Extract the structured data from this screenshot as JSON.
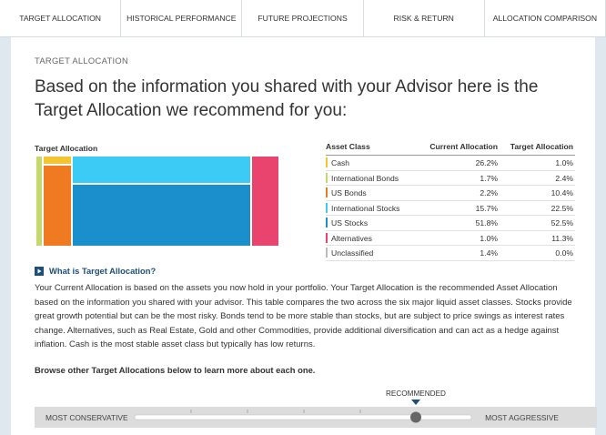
{
  "tabs": [
    "TARGET ALLOCATION",
    "HISTORICAL PERFORMANCE",
    "FUTURE PROJECTIONS",
    "RISK & RETURN",
    "ALLOCATION COMPARISON"
  ],
  "section_label": "TARGET ALLOCATION",
  "heading": "Based on the information you shared with your Advisor here is the Target Allocation we recommend for you:",
  "chart_title": "Target Allocation",
  "table": {
    "header": [
      "Asset Class",
      "Current Allocation",
      "Target Allocation"
    ],
    "rows": [
      {
        "name": "Cash",
        "color": "#f2c531",
        "current": "26.2%",
        "target": "1.0%"
      },
      {
        "name": "International Bonds",
        "color": "#c5d86d",
        "current": "1.7%",
        "target": "2.4%"
      },
      {
        "name": "US Bonds",
        "color": "#f07a22",
        "current": "2.2%",
        "target": "10.4%"
      },
      {
        "name": "International Stocks",
        "color": "#3ccbf4",
        "current": "15.7%",
        "target": "22.5%"
      },
      {
        "name": "US Stocks",
        "color": "#1a8fcc",
        "current": "51.8%",
        "target": "52.5%"
      },
      {
        "name": "Alternatives",
        "color": "#e8446e",
        "current": "1.0%",
        "target": "11.3%"
      },
      {
        "name": "Unclassified",
        "color": "#bbbbbb",
        "current": "1.4%",
        "target": "0.0%"
      }
    ]
  },
  "info_link": "What is Target Allocation?",
  "paragraph": "Your Current Allocation is based on the assets you now hold in your portfolio. Your Target Allocation is the recommended Asset Allocation based on the information you shared with your advisor. This table compares the two across the six major liquid asset classes. Stocks provide great growth potential but can be the most risky. Bonds tend to be more stable than stocks, but are subject to price swings as interest rates change. Alternatives, such as Real Estate, Gold and other Commodities, provide additional diversification and can act as a hedge against inflation. Cash is the most stable asset class but typically has low returns.",
  "browse": "Browse other Target Allocations below to learn more about each one.",
  "slider": {
    "marker": "RECOMMENDED",
    "left": "MOST CONSERVATIVE",
    "right": "MOST AGGRESSIVE"
  }
}
